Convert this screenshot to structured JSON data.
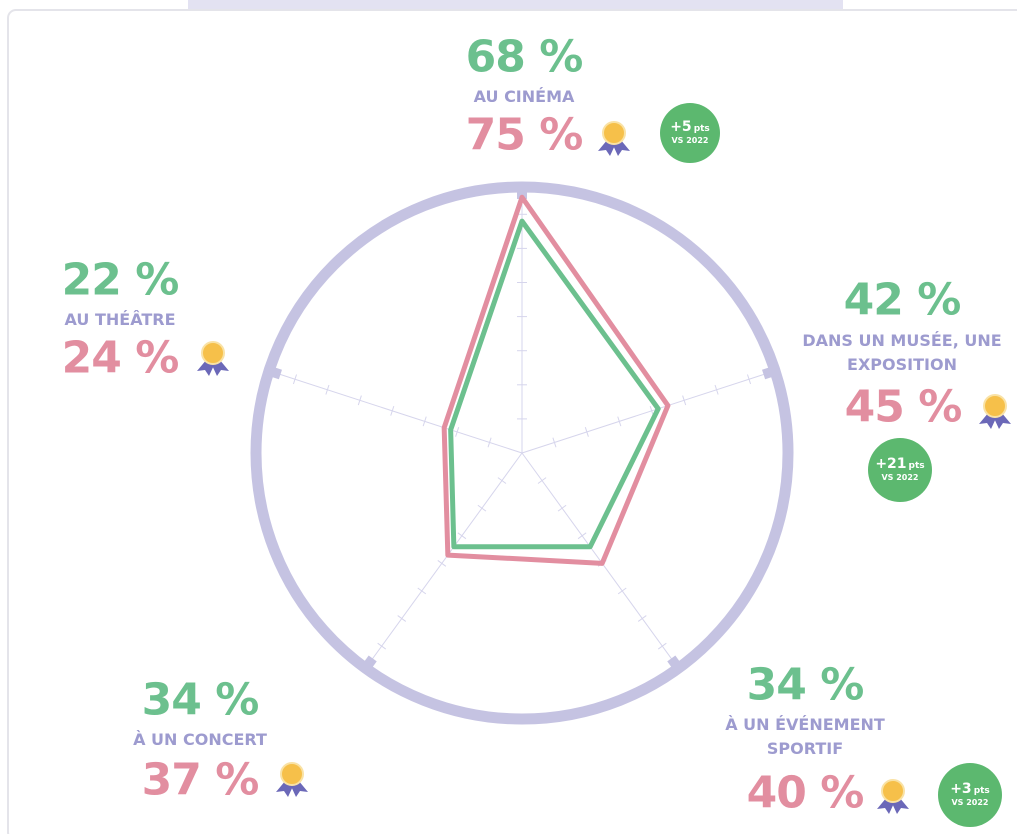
{
  "chart_data": {
    "type": "radar",
    "categories": [
      "AU CINÉMA",
      "DANS UN MUSÉE, UNE EXPOSITION",
      "À UN ÉVÉNEMENT SPORTIF",
      "À UN CONCERT",
      "AU THÉÂTRE"
    ],
    "series": [
      {
        "color": "#6cc08e",
        "values": [
          68,
          42,
          34,
          34,
          22
        ],
        "value_labels": [
          "68 %",
          "42 %",
          "34 %",
          "34 %",
          "22 %"
        ]
      },
      {
        "color": "#e28ea0",
        "values": [
          75,
          45,
          40,
          37,
          24
        ],
        "value_labels": [
          "75 %",
          "45 %",
          "40 %",
          "37 %",
          "24 %"
        ]
      }
    ],
    "rlim": [
      0,
      100
    ],
    "rticks": [
      10,
      20,
      30,
      40,
      50,
      60,
      70
    ],
    "badges": [
      {
        "text": "+5",
        "unit": "pts",
        "note": "VS 2022"
      },
      {
        "text": "+21",
        "unit": "pts",
        "note": "VS 2022"
      },
      {
        "text": "+3",
        "unit": "pts",
        "note": "VS 2022"
      },
      null,
      null
    ]
  }
}
